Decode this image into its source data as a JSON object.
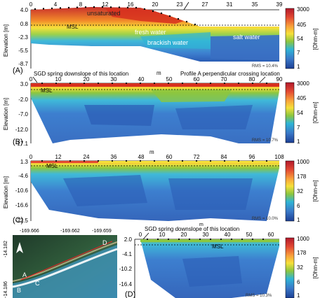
{
  "panels": [
    {
      "letter": "(A)",
      "ylabel": "Elevation [m]",
      "yticks": [
        "4.0",
        "0.8",
        "-2.3",
        "-5.5",
        "-8.7"
      ],
      "xticks": [
        "0",
        "4",
        "8",
        "12",
        "16",
        "20",
        "23",
        "27",
        "31",
        "35",
        "39"
      ],
      "xunit": "",
      "rms": "RMS = 10.4%",
      "labels": [
        "unsaturated",
        "MSL",
        "fresh water",
        "brackish water",
        "salt water"
      ],
      "colorbar": [
        "3000",
        "405",
        "54",
        "7",
        "1"
      ],
      "cbunit": "[Ohm-m]"
    },
    {
      "letter": "(B)",
      "ylabel": "Elevation [m]",
      "yticks": [
        "3.0",
        "-2.0",
        "-7.0",
        "-12.0",
        "-17.1"
      ],
      "xticks": [
        "0",
        "10",
        "20",
        "30",
        "40",
        "50",
        "60",
        "70",
        "80",
        "90"
      ],
      "xunit": "m",
      "rms": "RMS = 10.7%",
      "labels": [
        "MSL"
      ],
      "annot_left": "SGD spring downslope of this location",
      "annot_right": "Profile A perpendicular crossing location",
      "colorbar": [
        "3000",
        "405",
        "54",
        "7",
        "1"
      ],
      "cbunit": "[Ohm-m]"
    },
    {
      "letter": "(C)",
      "ylabel": "Elevation [m]",
      "yticks": [
        "1.3",
        "-4.6",
        "-10.6",
        "-16.6",
        "-22.5"
      ],
      "xticks": [
        "0",
        "12",
        "24",
        "36",
        "48",
        "60",
        "72",
        "84",
        "96",
        "108"
      ],
      "xunit": "m",
      "rms": "RMS = 10.0%",
      "labels": [
        "MSL"
      ],
      "colorbar": [
        "1000",
        "178",
        "32",
        "6",
        "1"
      ],
      "cbunit": "[Ohm-m]"
    },
    {
      "letter": "(D)",
      "ylabel": "Elevation [m]",
      "yticks": [
        "2.0",
        "-4.1",
        "-10.2",
        "-16.4"
      ],
      "xticks": [
        "0",
        "10",
        "20",
        "30",
        "40",
        "50",
        "60"
      ],
      "xunit": "m",
      "rms": "RMS = 10.3%",
      "labels": [
        "MSL"
      ],
      "annot_left": "SGD spring downslope of this location",
      "colorbar": [
        "1000",
        "178",
        "32",
        "6",
        "1"
      ],
      "cbunit": "[Ohm-m]"
    }
  ],
  "map": {
    "lon_ticks": [
      "-169.666",
      "-169.662",
      "-169.659"
    ],
    "lat_ticks": [
      "-14.182",
      "-14.186"
    ],
    "site_labels": [
      "A",
      "B",
      "C",
      "D"
    ]
  },
  "colors": {
    "red": "#d7301f",
    "orange": "#f57f20",
    "yellow": "#f6e03a",
    "green": "#8cc63f",
    "cyan": "#2fb5d6",
    "blue": "#3a78c8",
    "navy": "#1c3f94"
  }
}
